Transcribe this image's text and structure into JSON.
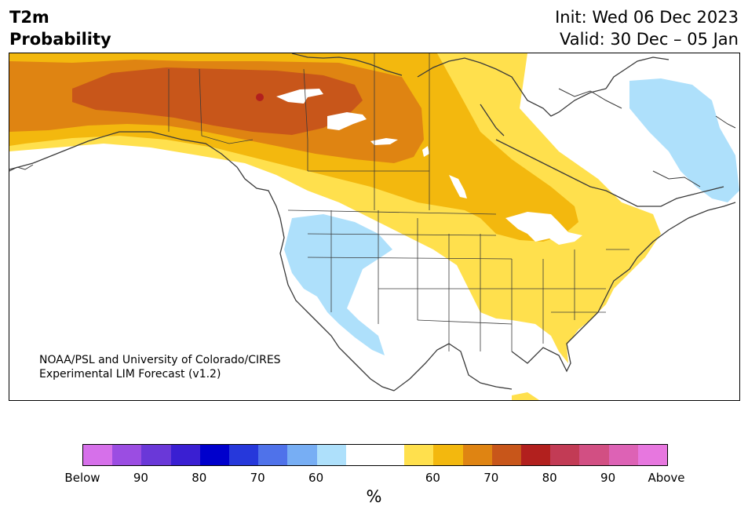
{
  "title": {
    "variable": "T2m",
    "quantity": "Probability",
    "init": "Init: Wed 06 Dec 2023",
    "valid": "Valid: 30 Dec – 05 Jan"
  },
  "credit": {
    "line1": "NOAA/PSL and University of Colorado/CIRES",
    "line2": "Experimental LIM Forecast (v1.2)"
  },
  "colorbar": {
    "colors": [
      "#d670ea",
      "#9b4de2",
      "#6a38d8",
      "#3a1fd2",
      "#0000cc",
      "#2638db",
      "#4f72ea",
      "#77aef4",
      "#aee0fb",
      "#ffffff",
      "#ffffff",
      "#ffe04d",
      "#f3b80e",
      "#df8412",
      "#c8561a",
      "#b2201e",
      "#c23b55",
      "#d24f83",
      "#dd62b5",
      "#e777df"
    ],
    "tick_labels": [
      "Below",
      "90",
      "80",
      "70",
      "60",
      "60",
      "70",
      "80",
      "90",
      "Above"
    ],
    "unit": "%"
  },
  "map_colors": {
    "land": "#ffffff",
    "border": "#3a3a3a",
    "below_60": "#aee0fb",
    "above_50": "#ffe04d",
    "above_60": "#f3b80e",
    "above_70": "#df8412",
    "above_80": "#c8561a",
    "above_90": "#b2201e"
  }
}
